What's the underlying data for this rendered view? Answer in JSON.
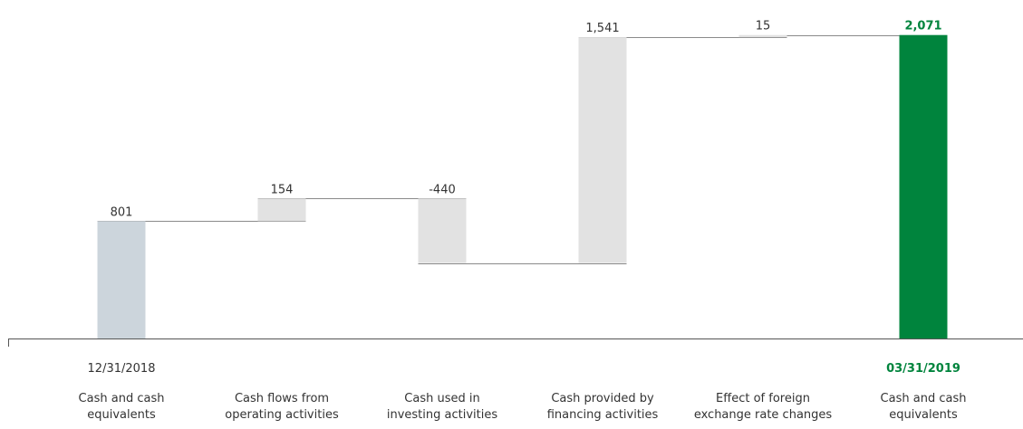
{
  "chart_data": {
    "type": "waterfall",
    "categories": [
      {
        "lines": [
          "Cash and cash",
          "equivalents"
        ],
        "date": "12/31/2018"
      },
      {
        "lines": [
          "Cash flows from",
          "operating activities"
        ],
        "date": ""
      },
      {
        "lines": [
          "Cash used in",
          "investing activities"
        ],
        "date": ""
      },
      {
        "lines": [
          "Cash provided by",
          "financing activities"
        ],
        "date": ""
      },
      {
        "lines": [
          "Effect of foreign",
          "exchange rate changes"
        ],
        "date": ""
      },
      {
        "lines": [
          "Cash and cash",
          "equivalents"
        ],
        "date": "03/31/2019"
      }
    ],
    "values": [
      801,
      154,
      -440,
      1541,
      15,
      2071
    ],
    "value_labels": [
      "801",
      "154",
      "-440",
      "1,541",
      "15",
      "2,071"
    ],
    "bar_kinds": [
      "start",
      "delta",
      "delta",
      "delta",
      "delta",
      "end"
    ],
    "ylim": [
      0,
      2100
    ],
    "grid": false,
    "legend": "none",
    "colors": {
      "start": "#ccd5dc",
      "delta": "#e2e2e2",
      "end": "#00843d",
      "end_text": "#00843d",
      "connector": "#8a8a8a",
      "axis": "#555555",
      "text": "#333333"
    }
  }
}
